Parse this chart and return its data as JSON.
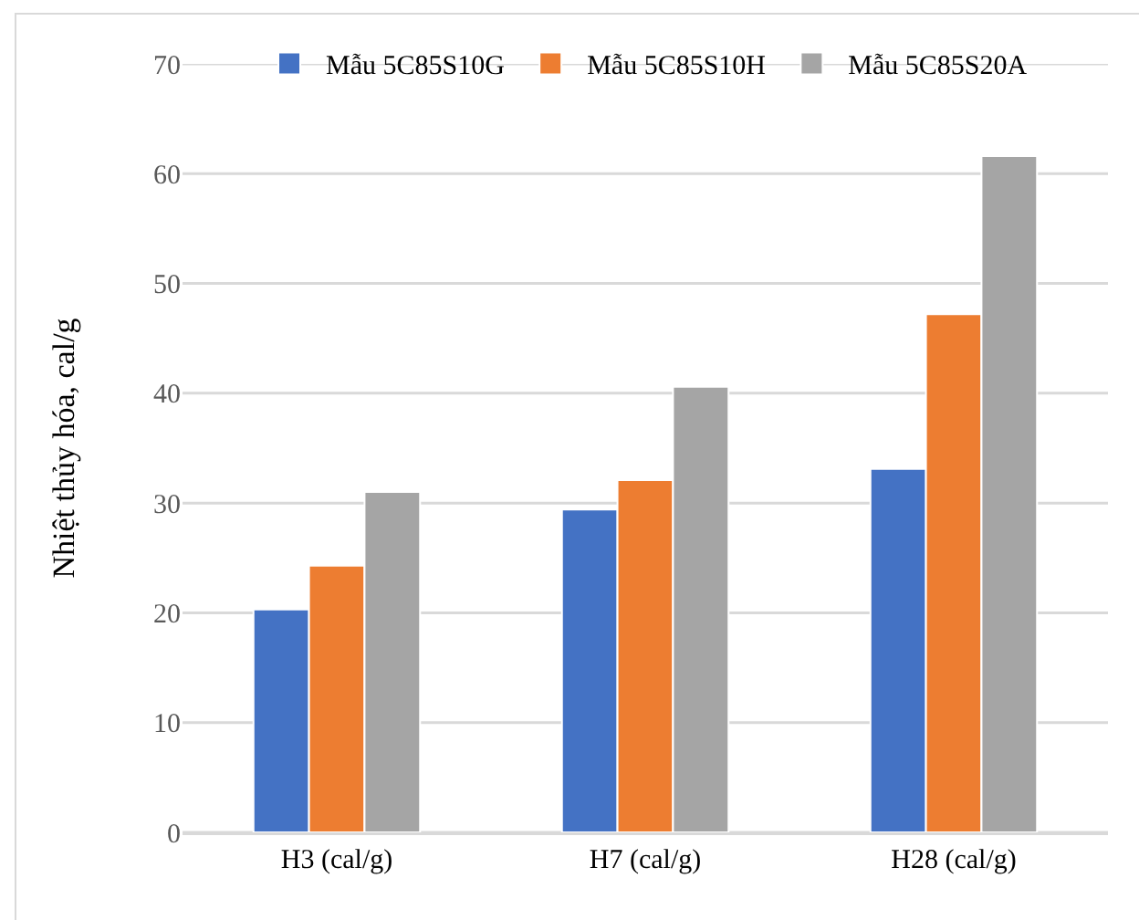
{
  "chart_data": {
    "type": "bar",
    "ylabel": "Nhiệt thủy hóa, cal/g",
    "categories": [
      "H3 (cal/g)",
      "H7 (cal/g)",
      "H28 (cal/g)"
    ],
    "series": [
      {
        "name": "Mẫu 5C85S10G",
        "color": "#4472c4",
        "values": [
          20.3,
          29.4,
          33.1
        ]
      },
      {
        "name": "Mẫu 5C85S10H",
        "color": "#ed7d31",
        "values": [
          24.3,
          32.1,
          47.2
        ]
      },
      {
        "name": "Mẫu 5C85S20A",
        "color": "#a5a5a5",
        "values": [
          31.0,
          40.6,
          61.6
        ]
      }
    ],
    "ylim": [
      0,
      70
    ],
    "yticks": [
      0,
      10,
      20,
      30,
      40,
      50,
      60,
      70
    ],
    "grid": "y",
    "legend": "top"
  }
}
